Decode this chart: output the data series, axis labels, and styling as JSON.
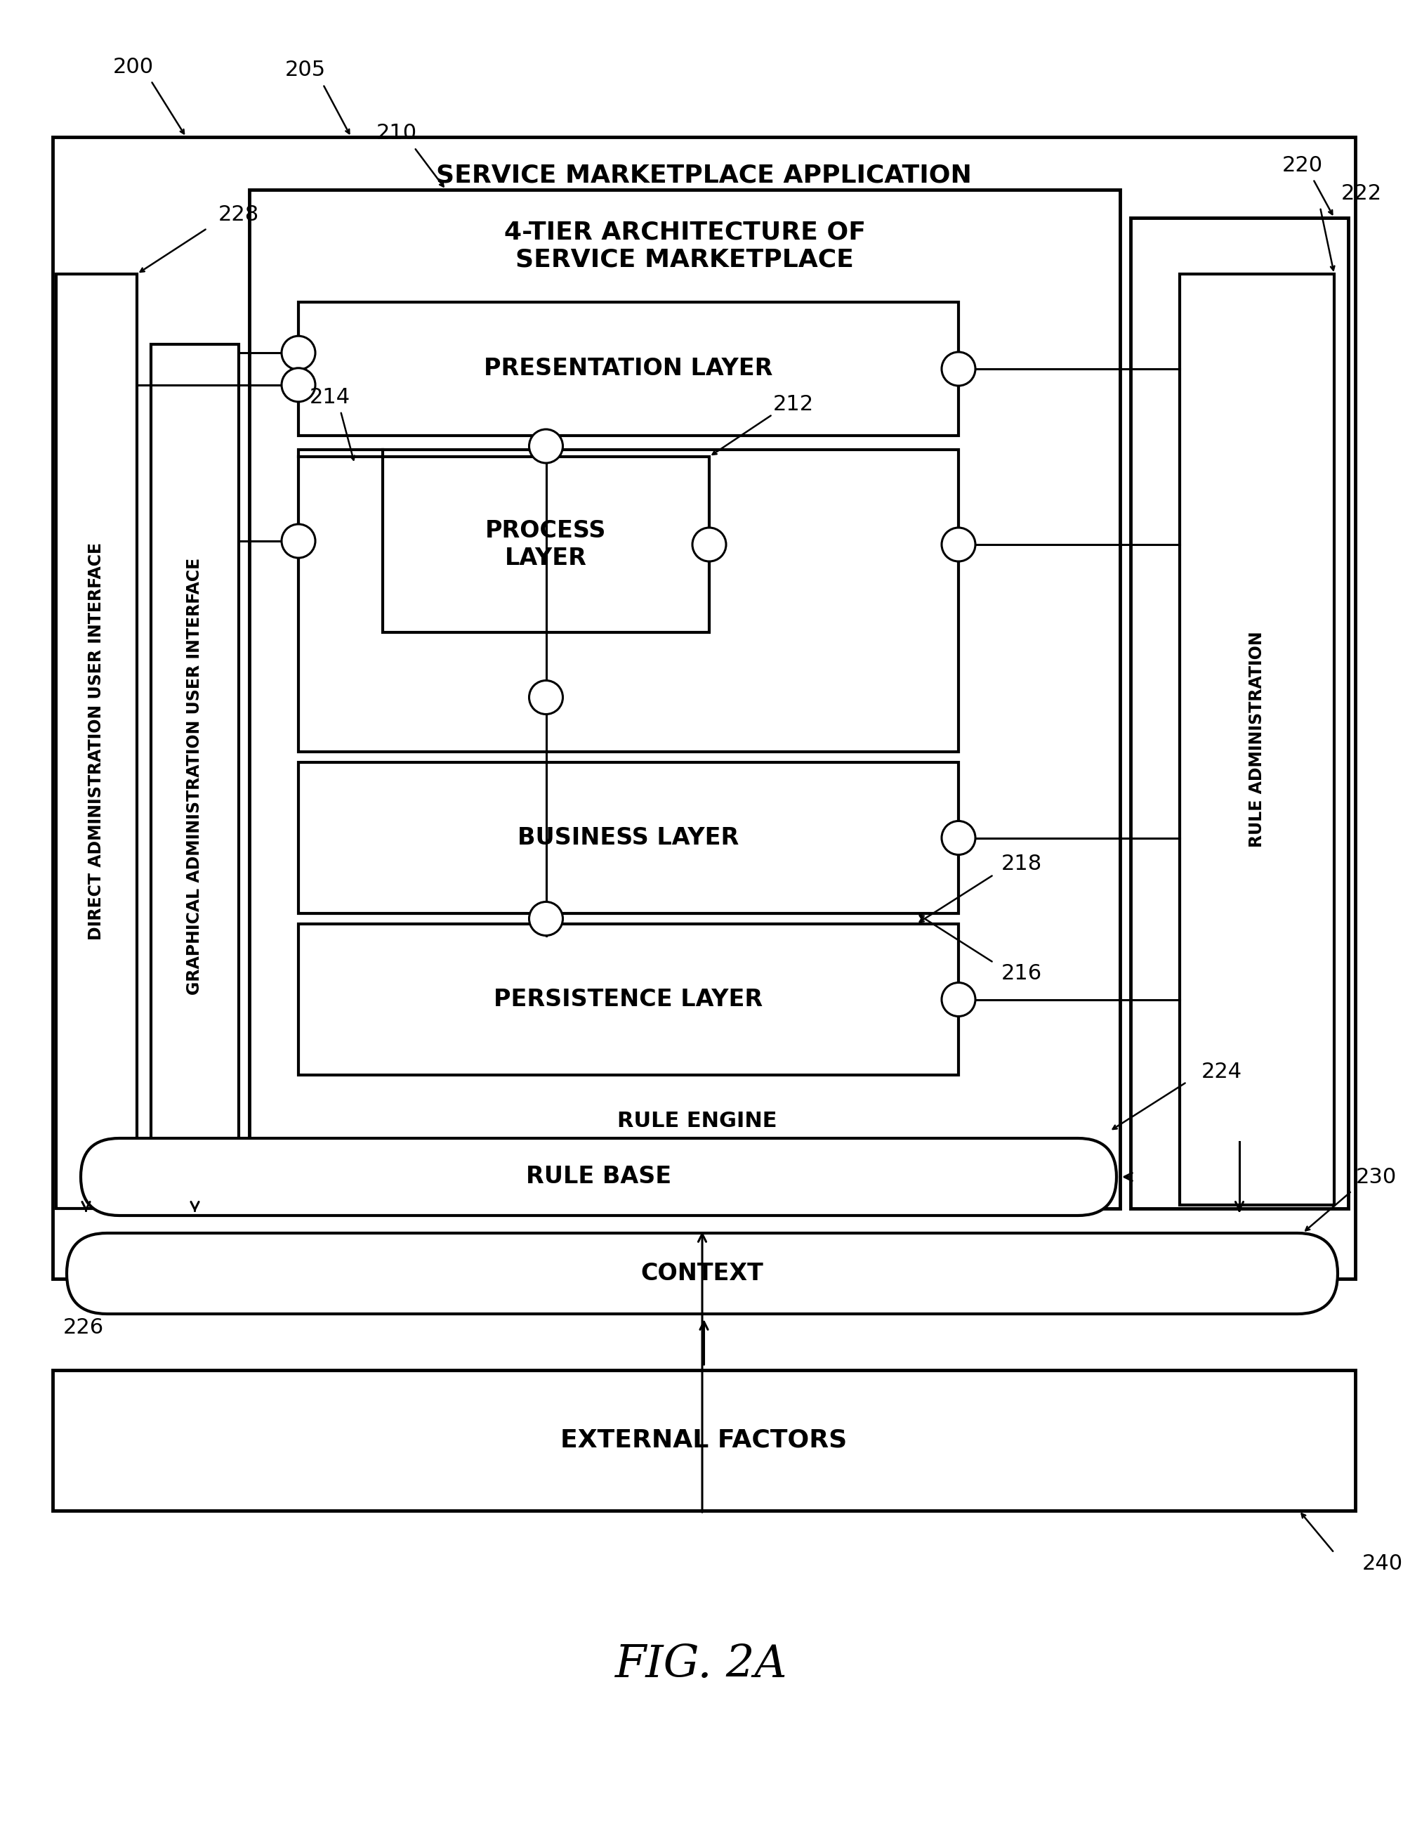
{
  "fig_label": "FIG. 2A",
  "bg_color": "#ffffff",
  "label_200": "200",
  "label_205": "205",
  "label_210": "210",
  "label_212": "212",
  "label_214": "214",
  "label_216": "216",
  "label_218": "218",
  "label_220": "220",
  "label_222": "222",
  "label_224": "224",
  "label_226": "226",
  "label_228": "228",
  "label_230": "230",
  "label_240": "240",
  "text_sma": "SERVICE MARKETPLACE APPLICATION",
  "text_4tier": "4-TIER ARCHITECTURE OF\nSERVICE MARKETPLACE",
  "text_presentation": "PRESENTATION LAYER",
  "text_process": "PROCESS\nLAYER",
  "text_business": "BUSINESS LAYER",
  "text_persistence": "PERSISTENCE LAYER",
  "text_rule_engine": "RULE ENGINE",
  "text_rule_base": "RULE BASE",
  "text_context": "CONTEXT",
  "text_external": "EXTERNAL FACTORS",
  "text_direct": "DIRECT ADMINISTRATION USER INTERFACE",
  "text_graphical": "GRAPHICAL ADMINISTRATION USER INTERFACE",
  "text_rule_admin": "RULE ADMINISTRATION"
}
